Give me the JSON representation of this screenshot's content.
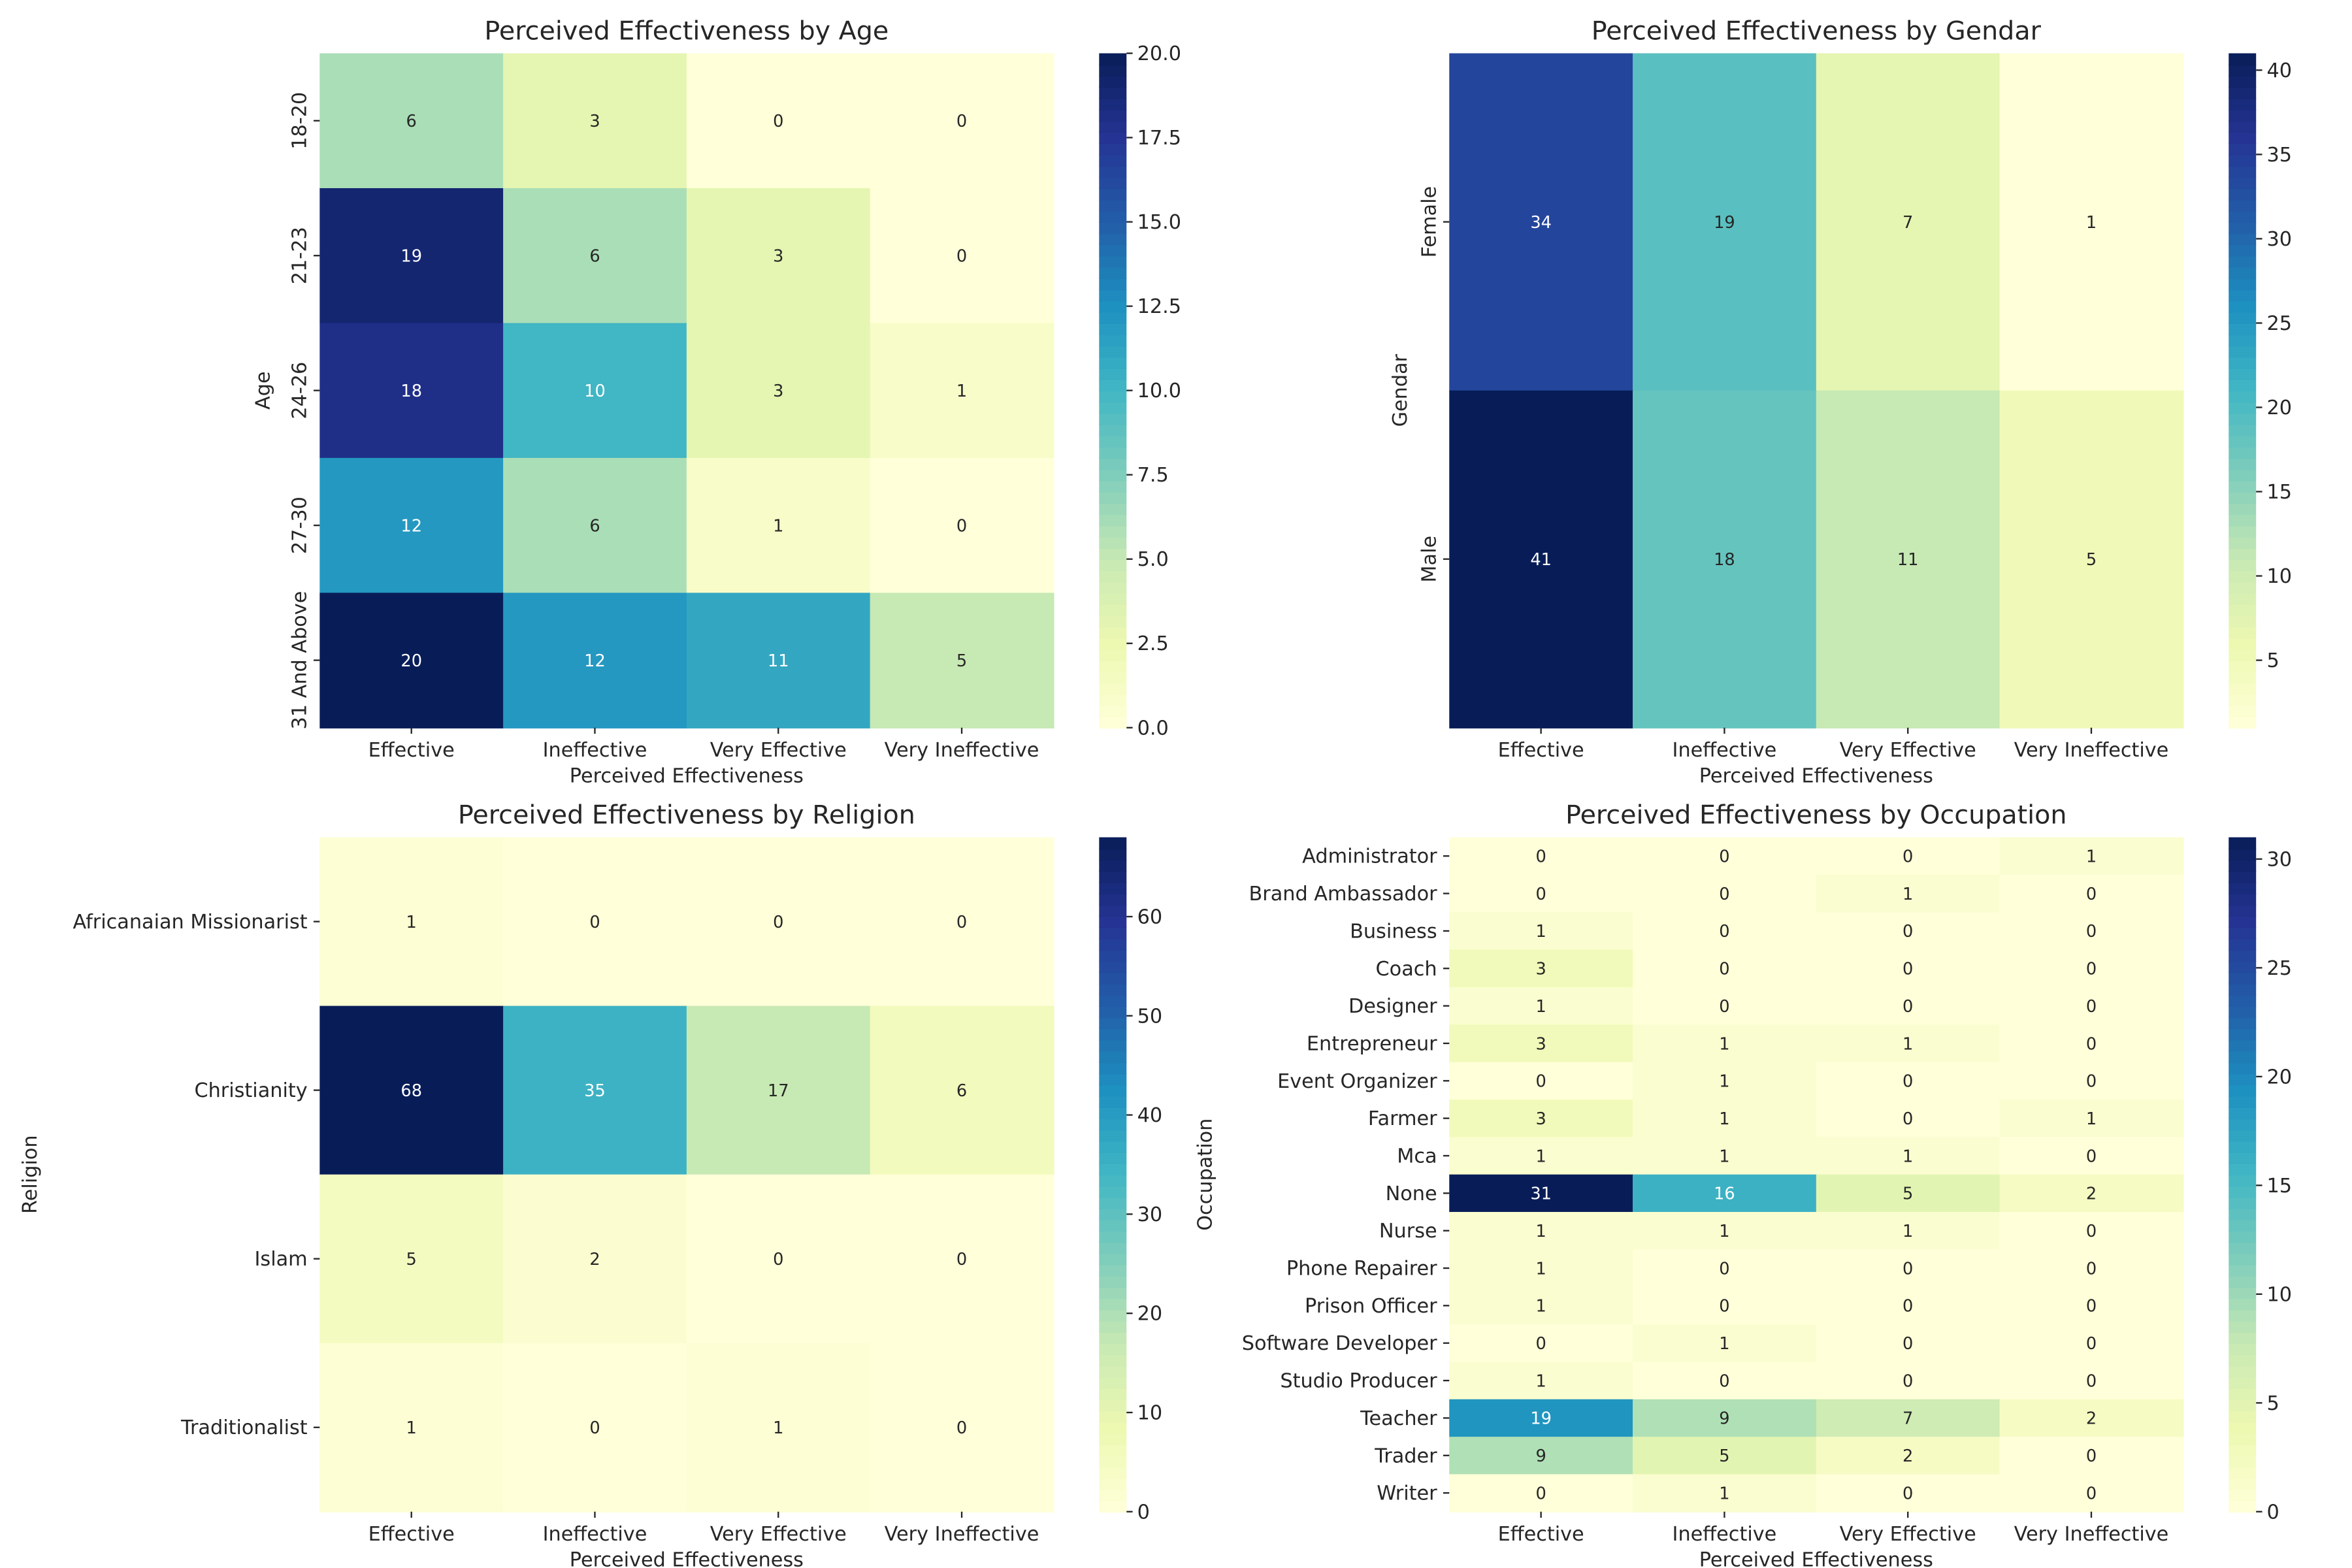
{
  "colormap": [
    "#ffffd9",
    "#edf8b1",
    "#c7e9b4",
    "#7fcdbb",
    "#41b6c4",
    "#1d91c0",
    "#225ea8",
    "#253494",
    "#081d58"
  ],
  "chart_data": [
    {
      "type": "heatmap",
      "title": "Perceived Effectiveness by Age",
      "xlabel": "Perceived Effectiveness",
      "ylabel": "Age",
      "columns": [
        "Effective",
        "Ineffective",
        "Very Effective",
        "Very Ineffective"
      ],
      "rows": [
        "18-20",
        "21-23",
        "24-26",
        "27-30",
        "31 And Above"
      ],
      "values": [
        [
          6,
          3,
          0,
          0
        ],
        [
          19,
          6,
          3,
          0
        ],
        [
          18,
          10,
          3,
          1
        ],
        [
          12,
          6,
          1,
          0
        ],
        [
          20,
          12,
          11,
          5
        ]
      ],
      "colorbar_range": [
        0,
        20
      ],
      "colorbar_ticks": [
        "0.0",
        "2.5",
        "5.0",
        "7.5",
        "10.0",
        "12.5",
        "15.0",
        "17.5",
        "20.0"
      ],
      "rotate_y_labels": true
    },
    {
      "type": "heatmap",
      "title": "Perceived Effectiveness by Gendar",
      "xlabel": "Perceived Effectiveness",
      "ylabel": "Gendar",
      "columns": [
        "Effective",
        "Ineffective",
        "Very Effective",
        "Very Ineffective"
      ],
      "rows": [
        "Female",
        "Male"
      ],
      "values": [
        [
          34,
          19,
          7,
          1
        ],
        [
          41,
          18,
          11,
          5
        ]
      ],
      "colorbar_range": [
        1,
        41
      ],
      "colorbar_ticks": [
        "5",
        "10",
        "15",
        "20",
        "25",
        "30",
        "35",
        "40"
      ],
      "rotate_y_labels": true
    },
    {
      "type": "heatmap",
      "title": "Perceived Effectiveness by Religion",
      "xlabel": "Perceived Effectiveness",
      "ylabel": "Religion",
      "columns": [
        "Effective",
        "Ineffective",
        "Very Effective",
        "Very Ineffective"
      ],
      "rows": [
        "Africanaian Missionarist",
        "Christianity",
        "Islam",
        "Traditionalist"
      ],
      "values": [
        [
          1,
          0,
          0,
          0
        ],
        [
          68,
          35,
          17,
          6
        ],
        [
          5,
          2,
          0,
          0
        ],
        [
          1,
          0,
          1,
          0
        ]
      ],
      "colorbar_range": [
        0,
        68
      ],
      "colorbar_ticks": [
        "0",
        "10",
        "20",
        "30",
        "40",
        "50",
        "60"
      ],
      "rotate_y_labels": false
    },
    {
      "type": "heatmap",
      "title": "Perceived Effectiveness by Occupation",
      "xlabel": "Perceived Effectiveness",
      "ylabel": "Occupation",
      "columns": [
        "Effective",
        "Ineffective",
        "Very Effective",
        "Very Ineffective"
      ],
      "rows": [
        "Administrator",
        "Brand Ambassador",
        "Business",
        "Coach",
        "Designer",
        "Entrepreneur",
        "Event Organizer",
        "Farmer",
        "Mca",
        "None",
        "Nurse",
        "Phone Repairer",
        "Prison Officer",
        "Software Developer",
        "Studio Producer",
        "Teacher",
        "Trader",
        "Writer"
      ],
      "values": [
        [
          0,
          0,
          0,
          1
        ],
        [
          0,
          0,
          1,
          0
        ],
        [
          1,
          0,
          0,
          0
        ],
        [
          3,
          0,
          0,
          0
        ],
        [
          1,
          0,
          0,
          0
        ],
        [
          3,
          1,
          1,
          0
        ],
        [
          0,
          1,
          0,
          0
        ],
        [
          3,
          1,
          0,
          1
        ],
        [
          1,
          1,
          1,
          0
        ],
        [
          31,
          16,
          5,
          2
        ],
        [
          1,
          1,
          1,
          0
        ],
        [
          1,
          0,
          0,
          0
        ],
        [
          1,
          0,
          0,
          0
        ],
        [
          0,
          1,
          0,
          0
        ],
        [
          1,
          0,
          0,
          0
        ],
        [
          19,
          9,
          7,
          2
        ],
        [
          9,
          5,
          2,
          0
        ],
        [
          0,
          1,
          0,
          0
        ]
      ],
      "colorbar_range": [
        0,
        31
      ],
      "colorbar_ticks": [
        "0",
        "5",
        "10",
        "15",
        "20",
        "25",
        "30"
      ],
      "rotate_y_labels": false
    }
  ]
}
